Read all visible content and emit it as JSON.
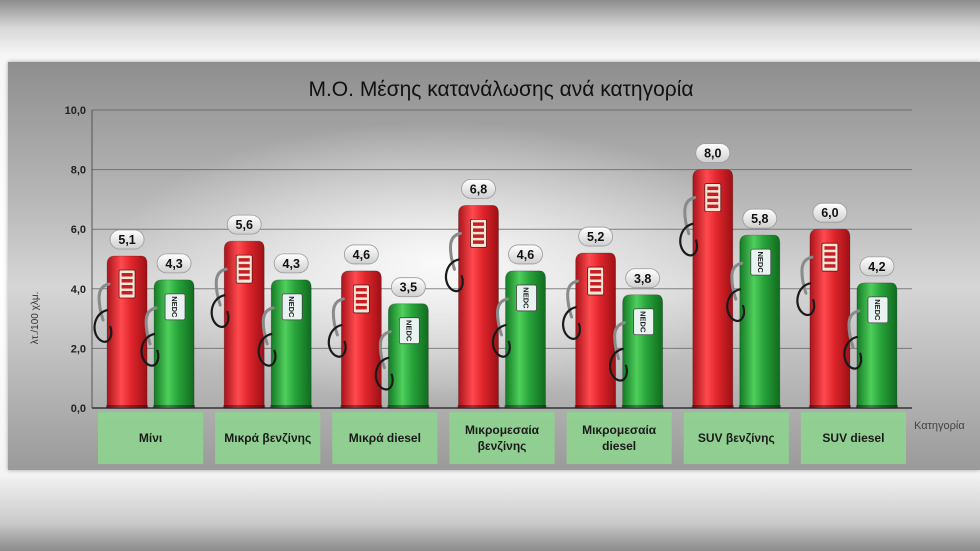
{
  "chart_data": {
    "type": "bar",
    "title": "Μ.Ο. Μέσης κατανάλωσης ανά κατηγορία",
    "ylabel": "λτ./100 χλμ.",
    "xlabel": "Κατηγορία",
    "ylim": [
      0,
      10
    ],
    "yticks": [
      "0,0",
      "2,0",
      "4,0",
      "6,0",
      "8,0",
      "10,0"
    ],
    "grid": true,
    "categories": [
      [
        "Μίνι"
      ],
      [
        "Μικρά βενζίνης"
      ],
      [
        "Μικρά diesel"
      ],
      [
        "Μικρομεσαία",
        "βενζίνης"
      ],
      [
        "Μικρομεσαία",
        "diesel"
      ],
      [
        "SUV βενζίνης"
      ],
      [
        "SUV diesel"
      ]
    ],
    "series": [
      {
        "color": "#e0262c",
        "values": [
          5.1,
          5.6,
          4.6,
          6.8,
          5.2,
          8.0,
          6.0
        ],
        "labels": [
          "5,1",
          "5,6",
          "4,6",
          "6,8",
          "5,2",
          "8,0",
          "6,0"
        ]
      },
      {
        "name": "NEDC",
        "color": "#27a33a",
        "values": [
          4.3,
          4.3,
          3.5,
          4.6,
          3.8,
          5.8,
          4.2
        ],
        "labels": [
          "4,3",
          "4,3",
          "3,5",
          "4,6",
          "3,8",
          "5,8",
          "4,2"
        ]
      }
    ],
    "category_box_color": "#8fd18f"
  }
}
